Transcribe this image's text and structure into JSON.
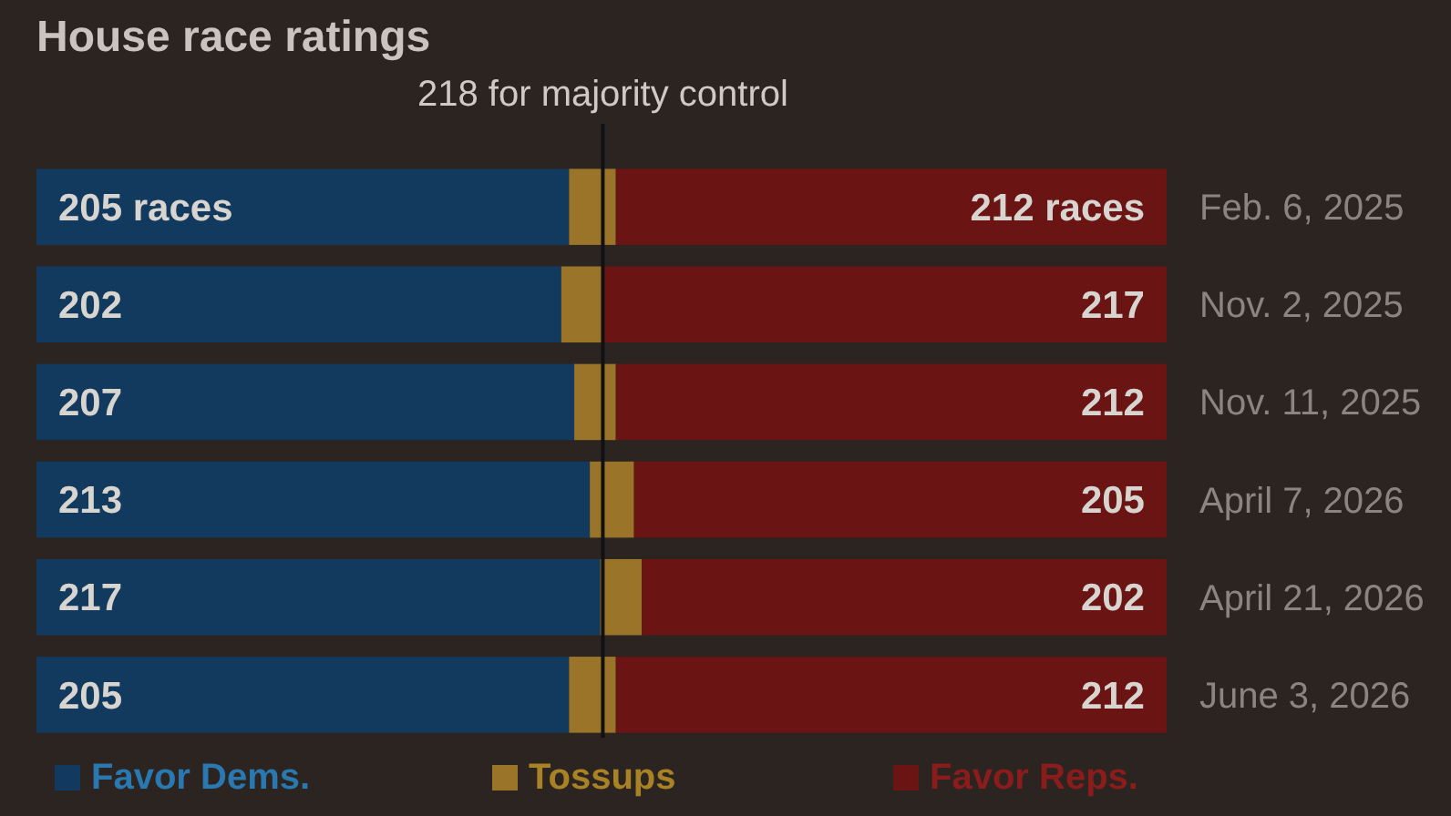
{
  "chart_data": {
    "type": "bar",
    "orientation": "horizontal",
    "stacked": true,
    "title": "House race ratings",
    "categories": [
      "Feb. 6, 2025",
      "Nov. 2, 2025",
      "Nov. 11, 2025",
      "April 7, 2026",
      "April 21, 2026",
      "June 3, 2026"
    ],
    "xlim": [
      0,
      435
    ],
    "tick_labels": "y",
    "legend": "bottom",
    "series": [
      {
        "name": "Favor Dems.",
        "color": "#123a5e",
        "values": [
          205,
          202,
          207,
          213,
          217,
          205
        ],
        "value_labels": [
          "205 races",
          "202",
          "207",
          "213",
          "217",
          "205"
        ]
      },
      {
        "name": "Tossups",
        "color": "#9a7428",
        "values": [
          18,
          16,
          16,
          17,
          16,
          18
        ]
      },
      {
        "name": "Favor Reps.",
        "color": "#6a1414",
        "values": [
          212,
          217,
          212,
          205,
          202,
          212
        ],
        "value_labels": [
          "212 races",
          "217",
          "212",
          "205",
          "202",
          "212"
        ]
      }
    ],
    "ref_lines": [
      {
        "axis": "x",
        "value": 218,
        "label": "218 for majority control",
        "color": "#111111"
      }
    ]
  }
}
